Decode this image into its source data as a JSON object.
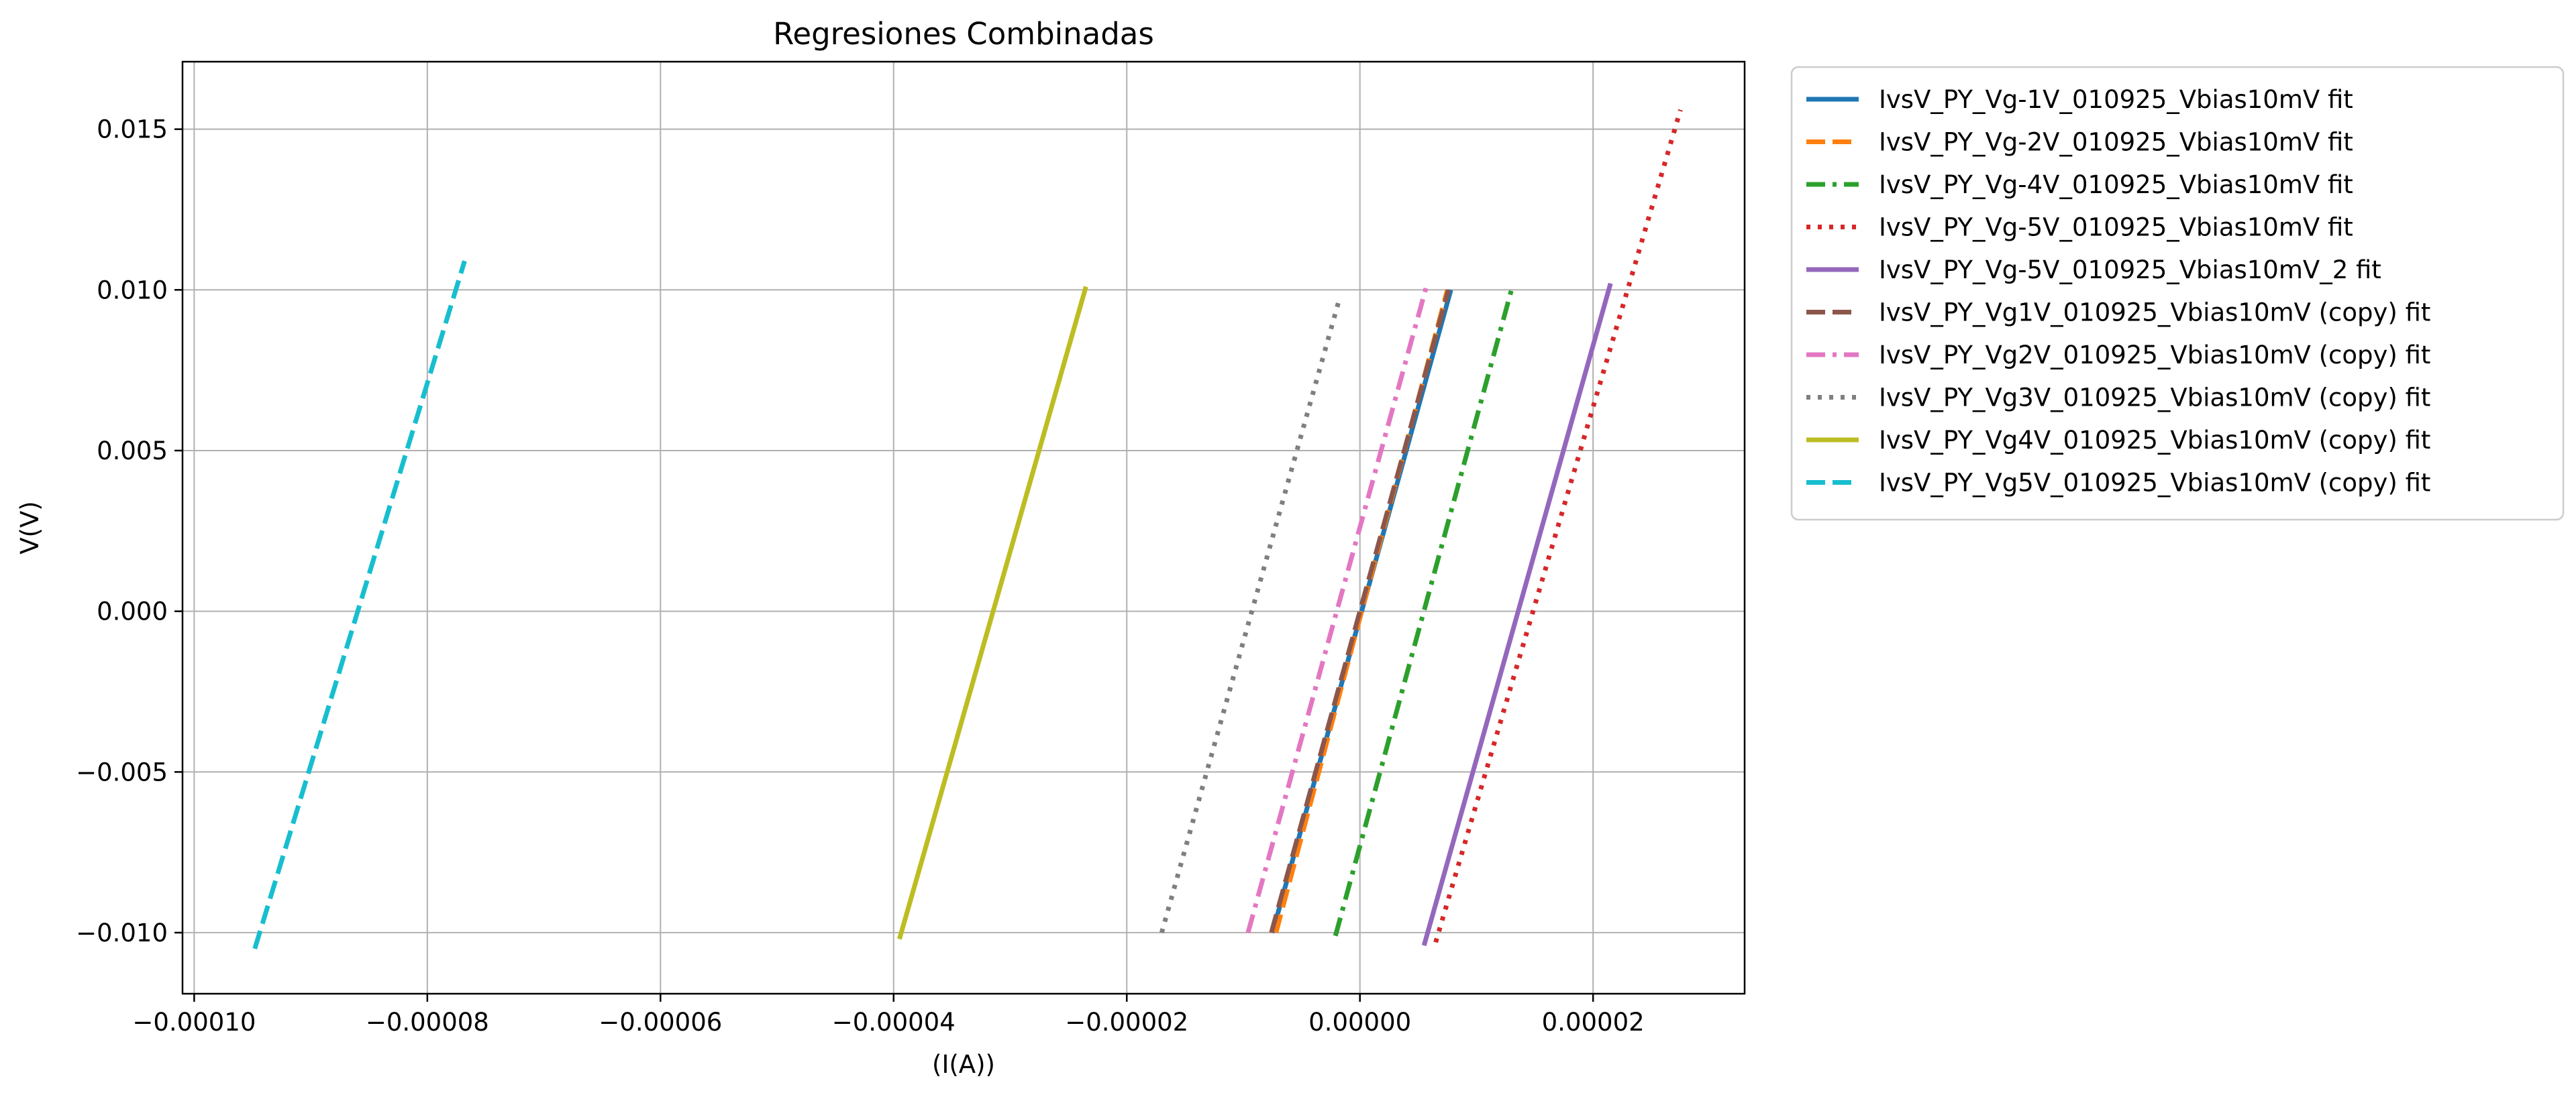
{
  "chart_data": {
    "type": "line",
    "title": "Regresiones Combinadas",
    "xlabel": "(I(A))",
    "ylabel": "V(V)",
    "xlim": [
      -0.000101,
      3.3e-05
    ],
    "ylim": [
      -0.0119,
      0.0171
    ],
    "xticks": [
      -0.0001,
      -8e-05,
      -6e-05,
      -4e-05,
      -2e-05,
      0.0,
      2e-05
    ],
    "xtick_labels": [
      "−0.00010",
      "−0.00008",
      "−0.00006",
      "−0.00004",
      "−0.00002",
      "0.00000",
      "0.00002"
    ],
    "yticks": [
      -0.01,
      -0.005,
      0.0,
      0.005,
      0.01,
      0.015
    ],
    "ytick_labels": [
      "−0.010",
      "−0.005",
      "0.000",
      "0.005",
      "0.010",
      "0.015"
    ],
    "grid": true,
    "legend_position": "outside-upper-right",
    "series": [
      {
        "name": "IvsV_PY_Vg-1V_010925_Vbias10mV fit",
        "color": "#1f77b4",
        "dash": "solid",
        "x": [
          -7.5e-06,
          7.8e-06
        ],
        "y": [
          -0.01,
          0.01
        ]
      },
      {
        "name": "IvsV_PY_Vg-2V_010925_Vbias10mV fit",
        "color": "#ff7f0e",
        "dash": "dashed",
        "x": [
          -7.2e-06,
          7.5e-06
        ],
        "y": [
          -0.01,
          0.01
        ]
      },
      {
        "name": "IvsV_PY_Vg-4V_010925_Vbias10mV fit",
        "color": "#2ca02c",
        "dash": "dashdot",
        "x": [
          -2.1e-06,
          1.3e-05
        ],
        "y": [
          -0.0101,
          0.01
        ]
      },
      {
        "name": "IvsV_PY_Vg-5V_010925_Vbias10mV fit",
        "color": "#d62728",
        "dash": "dotted",
        "x": [
          6.5e-06,
          2.75e-05
        ],
        "y": [
          -0.0103,
          0.0156
        ]
      },
      {
        "name": "IvsV_PY_Vg-5V_010925_Vbias10mV_2 fit",
        "color": "#9467bd",
        "dash": "solid",
        "x": [
          5.5e-06,
          2.15e-05
        ],
        "y": [
          -0.0104,
          0.0102
        ]
      },
      {
        "name": "IvsV_PY_Vg1V_010925_Vbias10mV (copy) fit",
        "color": "#8c564b",
        "dash": "dashed",
        "x": [
          -7.6e-06,
          7.6e-06
        ],
        "y": [
          -0.01,
          0.01
        ]
      },
      {
        "name": "IvsV_PY_Vg2V_010925_Vbias10mV (copy) fit",
        "color": "#e377c2",
        "dash": "dashdot",
        "x": [
          -9.6e-06,
          5.7e-06
        ],
        "y": [
          -0.01,
          0.0101
        ]
      },
      {
        "name": "IvsV_PY_Vg3V_010925_Vbias10mV (copy) fit",
        "color": "#7f7f7f",
        "dash": "dotted",
        "x": [
          -1.7e-05,
          -1.7e-06
        ],
        "y": [
          -0.01,
          0.0098
        ]
      },
      {
        "name": "IvsV_PY_Vg4V_010925_Vbias10mV (copy) fit",
        "color": "#bcbd22",
        "dash": "solid",
        "x": [
          -3.95e-05,
          -2.35e-05
        ],
        "y": [
          -0.0102,
          0.0101
        ]
      },
      {
        "name": "IvsV_PY_Vg5V_010925_Vbias10mV (copy) fit",
        "color": "#17becf",
        "dash": "dashed",
        "x": [
          -9.48e-05,
          -7.68e-05
        ],
        "y": [
          -0.0105,
          0.0109
        ]
      }
    ]
  }
}
